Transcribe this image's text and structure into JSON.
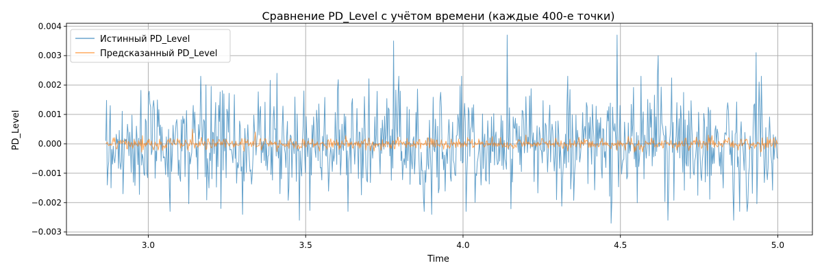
{
  "chart_data": {
    "type": "line",
    "title": "Сравнение PD_Level с учётом времени (каждые 400-е точки)",
    "xlabel": "Time",
    "ylabel": "PD_Level",
    "xlim": [
      2.74,
      5.11
    ],
    "ylim": [
      -0.0031,
      0.0041
    ],
    "x_ticks": [
      3.0,
      3.5,
      4.0,
      4.5,
      5.0
    ],
    "x_tick_labels": [
      "3.0",
      "3.5",
      "4.0",
      "4.5",
      "5.0"
    ],
    "y_ticks": [
      -0.003,
      -0.002,
      -0.001,
      0.0,
      0.001,
      0.002,
      0.003,
      0.004
    ],
    "y_tick_labels": [
      "−0.003",
      "−0.002",
      "−0.001",
      "0.000",
      "0.001",
      "0.002",
      "0.003",
      "0.004"
    ],
    "grid": true,
    "legend_position": "upper-left",
    "x_range": [
      2.865,
      5.0
    ],
    "series": [
      {
        "name": "Истинный PD_Level",
        "color": "#1f77b4",
        "approx_std": 0.0009,
        "key_points": [
          [
            2.865,
            0.0001
          ],
          [
            2.87,
            -0.0014
          ],
          [
            2.88,
            0.0013
          ],
          [
            2.92,
            -0.0017
          ],
          [
            3.07,
            -0.0023
          ],
          [
            3.23,
            -0.0022
          ],
          [
            3.24,
            0.0017
          ],
          [
            3.3,
            -0.0024
          ],
          [
            3.41,
            0.0024
          ],
          [
            3.48,
            -0.0026
          ],
          [
            3.78,
            0.0035
          ],
          [
            3.9,
            -0.0024
          ],
          [
            4.01,
            -0.0023
          ],
          [
            4.14,
            0.0037
          ],
          [
            4.47,
            -0.0027
          ],
          [
            4.49,
            0.0037
          ],
          [
            4.62,
            0.003
          ],
          [
            4.65,
            -0.0026
          ],
          [
            4.86,
            -0.0026
          ],
          [
            4.93,
            0.0031
          ],
          [
            5.0,
            -0.0005
          ]
        ]
      },
      {
        "name": "Предсказанный PD_Level",
        "color": "#ff7f0e",
        "approx_std": 0.0001,
        "key_points": [
          [
            2.865,
            0.0
          ],
          [
            3.14,
            0.0005
          ],
          [
            3.34,
            0.0004
          ],
          [
            3.7,
            0.0002
          ],
          [
            4.0,
            -0.0001
          ],
          [
            4.2,
            0.0003
          ],
          [
            4.5,
            0.0001
          ],
          [
            4.78,
            0.0003
          ],
          [
            5.0,
            0.0
          ]
        ]
      }
    ]
  }
}
